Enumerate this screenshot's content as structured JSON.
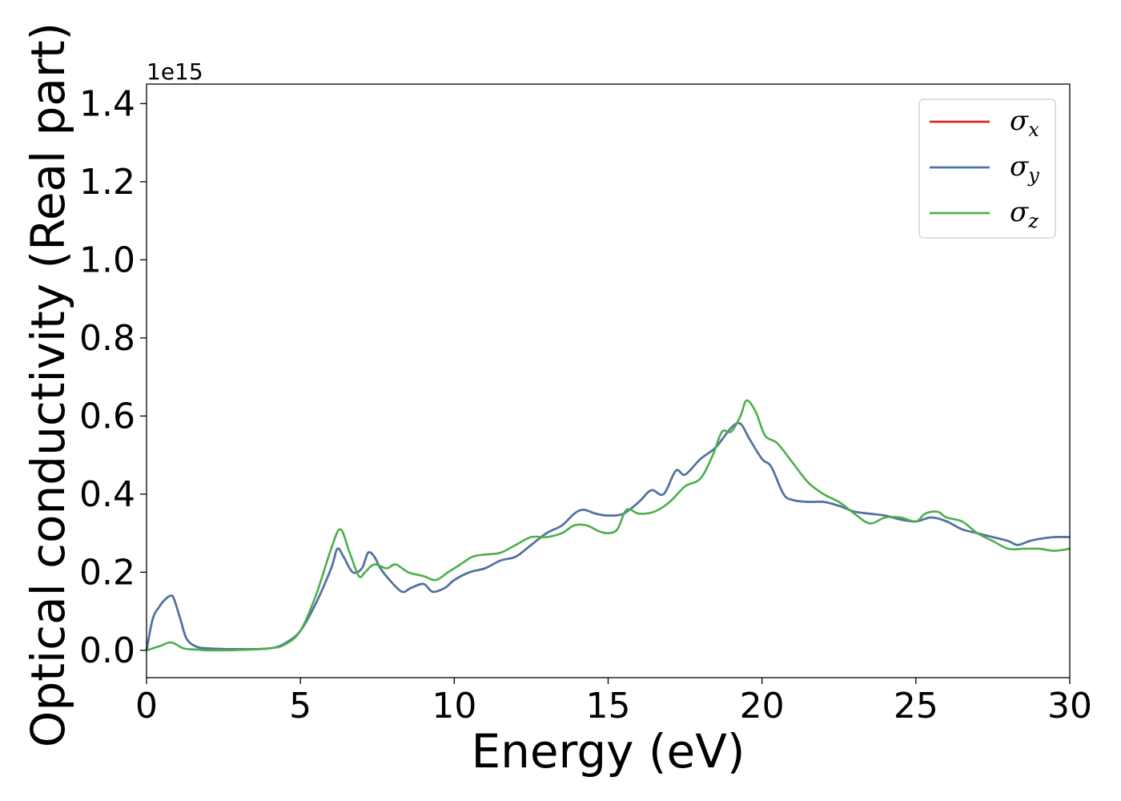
{
  "chart_data": {
    "type": "line",
    "xlabel": "Energy (eV)",
    "ylabel": "Optical conductivity (Real part)",
    "y_offset_text": "1e15",
    "xlim": [
      0,
      30
    ],
    "ylim": [
      -0.07,
      1.45
    ],
    "y_scale_factor": 1000000000000000.0,
    "x_ticks": [
      0,
      5,
      10,
      15,
      20,
      25,
      30
    ],
    "x_tick_labels": [
      "0",
      "5",
      "10",
      "15",
      "20",
      "25",
      "30"
    ],
    "y_ticks": [
      0.0,
      0.2,
      0.4,
      0.6,
      0.8,
      1.0,
      1.2,
      1.4
    ],
    "y_tick_labels": [
      "0.0",
      "0.2",
      "0.4",
      "0.6",
      "0.8",
      "1.0",
      "1.2",
      "1.4"
    ],
    "grid": false,
    "legend_position": "top-right",
    "series": [
      {
        "name": "σ",
        "subscript": "x",
        "color": "#d62728",
        "x": [
          0,
          0.2,
          0.4,
          0.6,
          0.8,
          0.9,
          1.1,
          1.3,
          1.6,
          2.0,
          3.0,
          4.0,
          4.5,
          5.0,
          5.5,
          6.0,
          6.2,
          6.4,
          6.7,
          7.0,
          7.2,
          7.4,
          7.6,
          7.9,
          8.3,
          8.6,
          9.0,
          9.3,
          9.7,
          10.0,
          10.5,
          11.0,
          11.5,
          12.0,
          12.5,
          13.0,
          13.5,
          13.9,
          14.2,
          14.6,
          15.0,
          15.5,
          16.0,
          16.4,
          16.8,
          17.2,
          17.5,
          18.0,
          18.5,
          19.0,
          19.3,
          19.6,
          20.0,
          20.3,
          20.7,
          21.0,
          21.5,
          22.0,
          22.5,
          23.0,
          23.5,
          24.0,
          24.5,
          25.0,
          25.5,
          26.0,
          26.5,
          27.0,
          27.5,
          28.0,
          28.3,
          28.7,
          29.0,
          29.5,
          30.0
        ],
        "values": [
          0.0,
          0.08,
          0.11,
          0.13,
          0.14,
          0.13,
          0.08,
          0.03,
          0.01,
          0.005,
          0.003,
          0.005,
          0.018,
          0.05,
          0.12,
          0.21,
          0.26,
          0.24,
          0.2,
          0.21,
          0.25,
          0.24,
          0.21,
          0.18,
          0.15,
          0.16,
          0.17,
          0.15,
          0.16,
          0.18,
          0.2,
          0.21,
          0.23,
          0.24,
          0.27,
          0.3,
          0.32,
          0.35,
          0.36,
          0.35,
          0.345,
          0.35,
          0.38,
          0.41,
          0.4,
          0.46,
          0.45,
          0.49,
          0.52,
          0.57,
          0.58,
          0.54,
          0.49,
          0.47,
          0.4,
          0.385,
          0.38,
          0.38,
          0.37,
          0.355,
          0.35,
          0.345,
          0.335,
          0.33,
          0.34,
          0.33,
          0.31,
          0.3,
          0.29,
          0.28,
          0.27,
          0.28,
          0.285,
          0.29,
          0.29
        ]
      },
      {
        "name": "σ",
        "subscript": "y",
        "color": "#4a76a8",
        "x": [
          0,
          0.2,
          0.4,
          0.6,
          0.8,
          0.9,
          1.1,
          1.3,
          1.6,
          2.0,
          3.0,
          4.0,
          4.5,
          5.0,
          5.5,
          6.0,
          6.2,
          6.4,
          6.7,
          7.0,
          7.2,
          7.4,
          7.6,
          7.9,
          8.3,
          8.6,
          9.0,
          9.3,
          9.7,
          10.0,
          10.5,
          11.0,
          11.5,
          12.0,
          12.5,
          13.0,
          13.5,
          13.9,
          14.2,
          14.6,
          15.0,
          15.5,
          16.0,
          16.4,
          16.8,
          17.2,
          17.5,
          18.0,
          18.5,
          19.0,
          19.3,
          19.6,
          20.0,
          20.3,
          20.7,
          21.0,
          21.5,
          22.0,
          22.5,
          23.0,
          23.5,
          24.0,
          24.5,
          25.0,
          25.5,
          26.0,
          26.5,
          27.0,
          27.5,
          28.0,
          28.3,
          28.7,
          29.0,
          29.5,
          30.0
        ],
        "values": [
          0.0,
          0.08,
          0.11,
          0.13,
          0.14,
          0.13,
          0.08,
          0.03,
          0.01,
          0.005,
          0.003,
          0.005,
          0.018,
          0.05,
          0.12,
          0.21,
          0.26,
          0.24,
          0.2,
          0.21,
          0.25,
          0.24,
          0.21,
          0.18,
          0.15,
          0.16,
          0.17,
          0.15,
          0.16,
          0.18,
          0.2,
          0.21,
          0.23,
          0.24,
          0.27,
          0.3,
          0.32,
          0.35,
          0.36,
          0.35,
          0.345,
          0.35,
          0.38,
          0.41,
          0.4,
          0.46,
          0.45,
          0.49,
          0.52,
          0.57,
          0.58,
          0.54,
          0.49,
          0.47,
          0.4,
          0.385,
          0.38,
          0.38,
          0.37,
          0.355,
          0.35,
          0.345,
          0.335,
          0.33,
          0.34,
          0.33,
          0.31,
          0.3,
          0.29,
          0.28,
          0.27,
          0.28,
          0.285,
          0.29,
          0.29
        ]
      },
      {
        "name": "σ",
        "subscript": "z",
        "color": "#4daf4a",
        "x": [
          0,
          0.4,
          0.8,
          1.2,
          1.6,
          2.0,
          3.0,
          4.0,
          4.5,
          5.0,
          5.5,
          6.0,
          6.3,
          6.6,
          6.9,
          7.1,
          7.4,
          7.8,
          8.1,
          8.5,
          9.0,
          9.4,
          9.8,
          10.2,
          10.6,
          11.0,
          11.5,
          12.0,
          12.5,
          13.0,
          13.5,
          13.9,
          14.3,
          14.7,
          15.0,
          15.3,
          15.6,
          16.0,
          16.5,
          17.0,
          17.5,
          18.0,
          18.4,
          18.7,
          19.0,
          19.3,
          19.5,
          19.8,
          20.1,
          20.5,
          21.0,
          21.5,
          22.0,
          22.5,
          23.0,
          23.5,
          24.0,
          24.5,
          25.0,
          25.3,
          25.7,
          26.0,
          26.5,
          27.0,
          27.5,
          28.0,
          28.5,
          29.0,
          29.5,
          30.0
        ],
        "values": [
          0.0,
          0.01,
          0.02,
          0.005,
          0.002,
          0.0,
          0.001,
          0.005,
          0.015,
          0.05,
          0.14,
          0.26,
          0.31,
          0.25,
          0.19,
          0.2,
          0.22,
          0.21,
          0.22,
          0.2,
          0.19,
          0.18,
          0.2,
          0.22,
          0.24,
          0.245,
          0.25,
          0.27,
          0.29,
          0.29,
          0.3,
          0.32,
          0.32,
          0.305,
          0.3,
          0.31,
          0.36,
          0.35,
          0.355,
          0.38,
          0.42,
          0.44,
          0.5,
          0.56,
          0.56,
          0.6,
          0.64,
          0.61,
          0.55,
          0.53,
          0.48,
          0.43,
          0.4,
          0.38,
          0.35,
          0.325,
          0.34,
          0.34,
          0.33,
          0.35,
          0.355,
          0.34,
          0.33,
          0.3,
          0.28,
          0.26,
          0.26,
          0.26,
          0.255,
          0.26
        ]
      }
    ]
  }
}
